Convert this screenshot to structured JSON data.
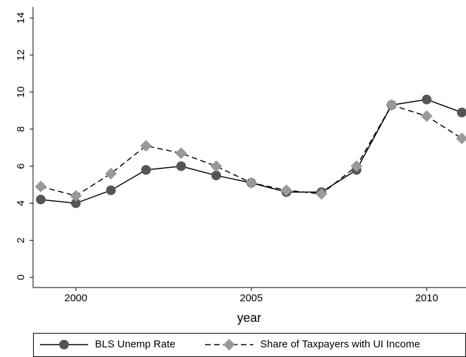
{
  "chart_data": {
    "type": "line",
    "x": [
      1999,
      2000,
      2001,
      2002,
      2003,
      2004,
      2005,
      2006,
      2007,
      2008,
      2009,
      2010,
      2011
    ],
    "series": [
      {
        "name": "BLS Unemp Rate",
        "color": "#555555",
        "line": "solid",
        "marker": "circle",
        "values": [
          4.2,
          4.0,
          4.7,
          5.8,
          6.0,
          5.5,
          5.1,
          4.6,
          4.6,
          5.8,
          9.3,
          9.6,
          8.9
        ]
      },
      {
        "name": "Share of Taxpayers with UI Income",
        "color": "#999999",
        "line": "dashed",
        "marker": "diamond",
        "values": [
          4.9,
          4.4,
          5.6,
          7.1,
          6.7,
          6.0,
          5.1,
          4.7,
          4.5,
          6.0,
          9.3,
          8.7,
          7.5
        ]
      }
    ],
    "xlabel": "year",
    "xlim": [
      1998.78,
      2011.12
    ],
    "xticks": [
      2000,
      2005,
      2010
    ],
    "ylim": [
      -0.55,
      14.6
    ],
    "yticks": [
      0,
      2,
      4,
      6,
      8,
      10,
      12,
      14
    ],
    "grid": false,
    "legend": "bottom"
  }
}
